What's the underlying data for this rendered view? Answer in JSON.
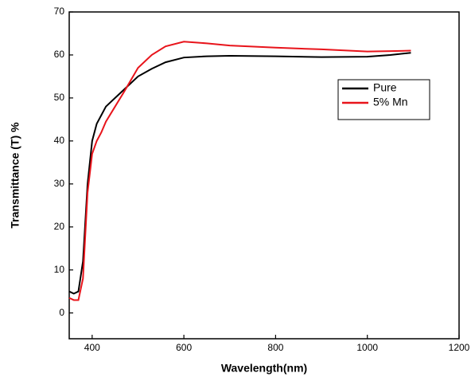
{
  "chart_data": {
    "type": "line",
    "xlabel": "Wavelength(nm)",
    "ylabel": "Transmittance (T) %",
    "x": [
      350,
      360,
      370,
      380,
      390,
      400,
      410,
      420,
      430,
      450,
      470,
      500,
      530,
      560,
      600,
      650,
      700,
      800,
      900,
      1000,
      1050,
      1095
    ],
    "series": [
      {
        "name": "Pure",
        "color": "#000000",
        "values": [
          5,
          4.5,
          5,
          12,
          30,
          40,
          44,
          46,
          48,
          50,
          52,
          55,
          56.8,
          58.3,
          59.4,
          59.7,
          59.8,
          59.7,
          59.5,
          59.6,
          60,
          60.5
        ]
      },
      {
        "name": "5% Mn",
        "color": "#e8141b",
        "values": [
          3.5,
          3,
          3,
          8,
          28,
          37,
          40,
          42,
          44.5,
          48,
          51.5,
          57,
          60,
          62,
          63.1,
          62.7,
          62.2,
          61.7,
          61.3,
          60.8,
          60.9,
          61
        ]
      }
    ],
    "xlim": [
      350,
      1200
    ],
    "xticks": [
      400,
      600,
      800,
      1000,
      1200
    ],
    "ylim": [
      -6,
      70
    ],
    "yticks": [
      0,
      10,
      20,
      30,
      40,
      50,
      60,
      70
    ],
    "grid": false,
    "legend": "upper right"
  }
}
